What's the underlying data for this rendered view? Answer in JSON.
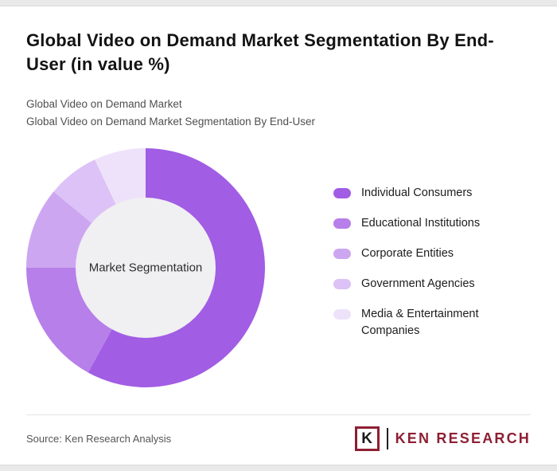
{
  "page": {
    "title": "Global Video on Demand Market Segmentation By End-User (in value %)",
    "subtitle_line1": "Global Video on Demand Market",
    "subtitle_line2": "Global Video on Demand Market Segmentation By End-User",
    "source": "Source: Ken Research Analysis"
  },
  "chart_data": {
    "type": "pie",
    "donut": true,
    "title": "Global Video on Demand Market Segmentation By End-User (in value %)",
    "center_label": "Market Segmentation",
    "unit": "value %",
    "legend_position": "right",
    "categories": [
      "Individual Consumers",
      "Educational Institutions",
      "Corporate Entities",
      "Government Agencies",
      "Media & Entertainment Companies"
    ],
    "values": [
      58,
      17,
      11,
      7,
      7
    ],
    "colors": [
      "#a15de4",
      "#b77fe9",
      "#cda6f1",
      "#dcc2f6",
      "#eee2fb"
    ],
    "hole_color": "#f0eff2",
    "center_label_color": "#2e2e2e"
  },
  "branding": {
    "logo_letter": "K",
    "logo_text": "KEN RESEARCH",
    "logo_color": "#8e1f33"
  }
}
